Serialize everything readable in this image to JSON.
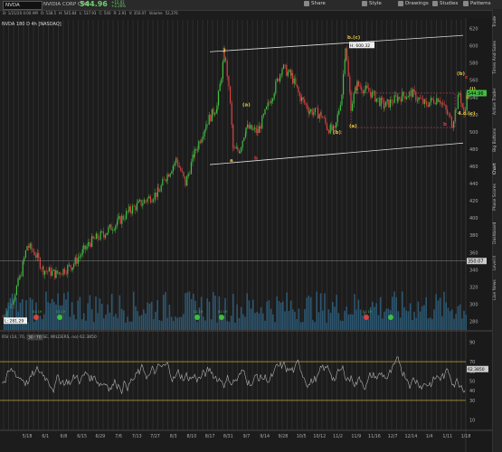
{
  "toolbar": {
    "symbol": "NVDA",
    "company": "NVIDIA CORP COM",
    "last": "544.96",
    "change": "+12.01",
    "change_pct": "+2.26%",
    "buttons": [
      "Share",
      "Style",
      "Drawings",
      "Studies",
      "Patterns"
    ]
  },
  "quote_line": [
    "D: 1/21/20 4:00 AM",
    "O: 538.5",
    "H: 545.84",
    "L: 537.93",
    "C: 540",
    "R: 2.91",
    "V: 350.07",
    "Volume",
    "52,376"
  ],
  "chart_title": "NVDA 180 D 4h [NASDAQ]",
  "price_axis": [
    "620",
    "600",
    "580",
    "560",
    "540",
    "520",
    "500",
    "480",
    "460",
    "440",
    "420",
    "400",
    "380",
    "360",
    "340",
    "320",
    "300",
    "280"
  ],
  "price_tags": {
    "last": "544.96",
    "high": "H: 600.32",
    "low": "L: 281.29",
    "line": "350.07"
  },
  "wave_labels": [
    "3",
    "(a)",
    "a",
    "b",
    "b.(c)",
    "(b)",
    "c",
    "(a)",
    "a",
    "b",
    "(b)",
    "c",
    "(i)",
    "ii",
    "4.c.(c)"
  ],
  "events": [
    "01 19",
    "01 19",
    "01 19",
    "01 19",
    "01 19"
  ],
  "date_axis": [
    "5/18",
    "6/1",
    "6/8",
    "6/15",
    "6/29",
    "7/6",
    "7/13",
    "7/27",
    "8/3",
    "8/10",
    "8/17",
    "8/31",
    "9/7",
    "9/14",
    "9/28",
    "10/5",
    "10/12",
    "11/2",
    "11/9",
    "11/16",
    "12/7",
    "12/14",
    "1/4",
    "1/11",
    "1/18"
  ],
  "rsi_title": "RSI (14, 70, 30, CLOSE, WILDERS, no) 62.3850",
  "rsi_levels": [
    "30",
    "70"
  ],
  "rsi_axis": [
    "90",
    "70",
    "60",
    "50",
    "40",
    "30",
    "10"
  ],
  "rsi_tag": "62.3850",
  "side_tabs": [
    "Trade",
    "Times And Sales",
    "Active Trader",
    "Big Buttons",
    "Chart",
    "Phase Scores",
    "Dashboard",
    "Level II",
    "Live News"
  ]
}
